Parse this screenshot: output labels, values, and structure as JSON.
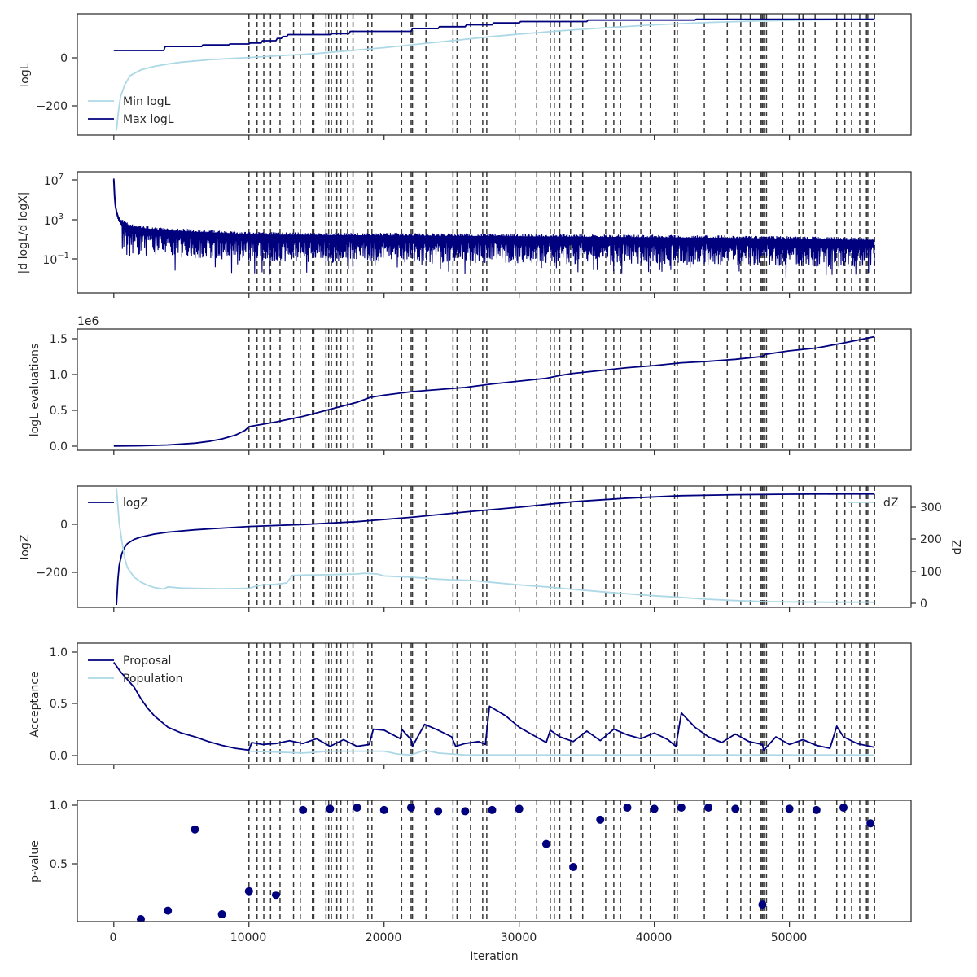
{
  "colors": {
    "dark": "#00007f",
    "light": "#add8e6",
    "vline": "#3a3a3a",
    "axis": "#262626"
  },
  "vlines": [
    10000,
    10600,
    11100,
    11600,
    12300,
    13300,
    13800,
    14700,
    14800,
    15700,
    15900,
    16100,
    16500,
    16800,
    17300,
    17700,
    18800,
    19100,
    21300,
    22000,
    22100,
    23100,
    25100,
    25400,
    26400,
    27300,
    27600,
    29700,
    31300,
    32300,
    32600,
    33000,
    33800,
    34700,
    36400,
    37000,
    37500,
    39000,
    39700,
    41500,
    41700,
    43700,
    45400,
    46400,
    47100,
    47900,
    48000,
    48100,
    48300,
    49500,
    50700,
    51000,
    51900,
    53500,
    54100,
    54600,
    55200,
    55700,
    55800,
    56300
  ],
  "xaxis": {
    "label": "Iteration",
    "ticks": [
      "0",
      "10000",
      "20000",
      "30000",
      "40000",
      "50000"
    ],
    "range": [
      -2700,
      59000
    ]
  },
  "chart_data": [
    {
      "type": "line",
      "ylabel": "logL",
      "yticks": [
        "0",
        "−200"
      ],
      "ylim": [
        -335,
        185
      ],
      "legend": {
        "position": "lower-left",
        "entries": [
          "Min logL",
          "Max logL"
        ]
      },
      "series": [
        {
          "name": "Min logL",
          "color": "#add8e6",
          "x": [
            200,
            350,
            500,
            800,
            1200,
            2000,
            3000,
            4000,
            5000,
            7000,
            10000,
            12000,
            15000,
            18000,
            20000,
            22000,
            25000,
            28000,
            30000,
            33000,
            36000,
            40000,
            44000,
            48000,
            52000,
            56300
          ],
          "y": [
            -315,
            -230,
            -170,
            -120,
            -80,
            -55,
            -40,
            -30,
            -22,
            -12,
            -2,
            5,
            15,
            30,
            40,
            52,
            70,
            88,
            98,
            112,
            124,
            138,
            148,
            155,
            159,
            162
          ]
        },
        {
          "name": "Max logL",
          "color": "#00007f",
          "x": [
            0,
            3700,
            3800,
            6500,
            6600,
            8500,
            8600,
            10000,
            10100,
            10900,
            11000,
            12000,
            12100,
            12400,
            12500,
            12800,
            12900,
            16000,
            16100,
            17400,
            17500,
            22000,
            22100,
            24000,
            24100,
            26000,
            26100,
            28000,
            28100,
            30000,
            30100,
            35000,
            35100,
            43000,
            43100,
            56300
          ],
          "y": [
            28,
            28,
            45,
            45,
            52,
            52,
            56,
            56,
            60,
            60,
            70,
            70,
            80,
            80,
            88,
            88,
            96,
            96,
            100,
            100,
            110,
            110,
            122,
            122,
            130,
            130,
            138,
            138,
            146,
            146,
            152,
            152,
            158,
            158,
            162,
            162
          ]
        }
      ]
    },
    {
      "type": "line",
      "ylabel": "|d logL/d logX|",
      "yticks": [
        {
          "label": "10",
          "exp": "7",
          "value": 7
        },
        {
          "label": "10",
          "exp": "3",
          "value": 3
        },
        {
          "label": "10",
          "exp": "−1",
          "value": -1
        }
      ],
      "ylim_log10": [
        -4.6,
        8.2
      ],
      "scale": "log",
      "series": [
        {
          "name": "",
          "color": "#00007f",
          "x": [
            0,
            60,
            120,
            200,
            300,
            450,
            650,
            900,
            1200,
            1700,
            2300,
            3000,
            4000,
            5000,
            6500,
            8000,
            9500,
            10000,
            15000,
            20000,
            25000,
            30000,
            35000,
            40000,
            45000,
            50000,
            54000,
            56300
          ],
          "y_log10": [
            7.4,
            5.6,
            4.6,
            4.0,
            3.5,
            3.1,
            2.8,
            2.6,
            2.4,
            2.25,
            2.15,
            2.05,
            1.95,
            1.85,
            1.75,
            1.65,
            1.55,
            1.5,
            1.45,
            1.4,
            1.35,
            1.3,
            1.25,
            1.2,
            1.15,
            1.05,
            0.95,
            0.9
          ],
          "band_low_log10": -2.8
        }
      ]
    },
    {
      "type": "line",
      "ylabel": "logL evaluations",
      "offset_label": "1e6",
      "yticks": [
        "1.5",
        "1.0",
        "0.5",
        "0.0"
      ],
      "ylim": [
        -0.06,
        1.66
      ],
      "series": [
        {
          "name": "",
          "color": "#00007f",
          "x": [
            0,
            2000,
            4000,
            6000,
            7000,
            8000,
            9000,
            9700,
            10000,
            12000,
            14000,
            16000,
            18000,
            19000,
            20000,
            22000,
            24000,
            26000,
            28000,
            30000,
            32000,
            33000,
            34000,
            36000,
            38000,
            40000,
            42000,
            44000,
            46000,
            48000,
            48200,
            50000,
            52000,
            54000,
            56300
          ],
          "y": [
            0.0,
            0.004,
            0.015,
            0.04,
            0.065,
            0.1,
            0.155,
            0.22,
            0.275,
            0.34,
            0.42,
            0.52,
            0.62,
            0.69,
            0.72,
            0.77,
            0.8,
            0.83,
            0.88,
            0.92,
            0.96,
            1.0,
            1.03,
            1.07,
            1.11,
            1.14,
            1.18,
            1.2,
            1.23,
            1.27,
            1.3,
            1.35,
            1.39,
            1.46,
            1.55
          ]
        }
      ]
    },
    {
      "type": "line",
      "ylabel": "logZ",
      "yticks": [
        "0",
        "−200"
      ],
      "ylim": [
        -335,
        170
      ],
      "y2label": "dZ",
      "y2ticks": [
        "300",
        "200",
        "100",
        "0"
      ],
      "y2lim": [
        -14,
        364
      ],
      "legend": {
        "left": "logZ",
        "right": "dZ"
      },
      "series": [
        {
          "name": "logZ",
          "color": "#00007f",
          "x": [
            200,
            300,
            400,
            600,
            800,
            1000,
            1500,
            2000,
            3000,
            4000,
            6000,
            8000,
            10000,
            14000,
            18000,
            22000,
            26000,
            30000,
            34000,
            38000,
            42000,
            46000,
            50000,
            54000,
            56300
          ],
          "y": [
            -325,
            -220,
            -160,
            -110,
            -85,
            -70,
            -52,
            -42,
            -30,
            -22,
            -12,
            -5,
            2,
            10,
            22,
            40,
            62,
            82,
            105,
            120,
            130,
            134,
            136,
            137,
            137
          ]
        },
        {
          "name": "dZ",
          "color": "#add8e6",
          "axis": "right",
          "x": [
            200,
            400,
            600,
            800,
            1000,
            1500,
            2000,
            2500,
            3000,
            3700,
            4000,
            5000,
            6000,
            8000,
            10000,
            10500,
            11000,
            12000,
            12800,
            13200,
            16000,
            18000,
            18500,
            19500,
            20000,
            21000,
            22000,
            23000,
            24000,
            25000,
            26500,
            28000,
            30000,
            32000,
            34000,
            36000,
            38000,
            40000,
            42000,
            44000,
            46000,
            48000,
            50000,
            53000,
            56300
          ],
          "y": [
            355,
            250,
            190,
            140,
            110,
            80,
            65,
            55,
            48,
            43,
            50,
            46,
            45,
            44,
            45,
            52,
            56,
            58,
            62,
            86,
            88,
            90,
            92,
            90,
            84,
            82,
            80,
            77,
            74,
            72,
            70,
            64,
            56,
            50,
            42,
            35,
            28,
            22,
            17,
            11,
            7,
            4,
            3,
            2,
            2
          ]
        }
      ]
    },
    {
      "type": "line",
      "ylabel": "Acceptance",
      "yticks": [
        "1.0",
        "0.5",
        "0.0"
      ],
      "ylim": [
        -0.09,
        1.18
      ],
      "legend": {
        "position": "upper-left",
        "entries": [
          "Proposal",
          "Population"
        ]
      },
      "series": [
        {
          "name": "Proposal",
          "color": "#00007f",
          "x": [
            0,
            500,
            1000,
            1500,
            2000,
            2500,
            3000,
            3500,
            4000,
            5000,
            6000,
            7000,
            8000,
            9000,
            10000,
            10200,
            11000,
            12000,
            13000,
            14000,
            15000,
            16000,
            17000,
            18000,
            18900,
            19200,
            20000,
            21200,
            21300,
            22000,
            22100,
            23000,
            24000,
            25000,
            25300,
            26000,
            27000,
            27500,
            27800,
            29000,
            30000,
            31000,
            32000,
            32300,
            33000,
            34000,
            35000,
            36000,
            37000,
            38000,
            39000,
            40000,
            41000,
            41600,
            42000,
            43000,
            44000,
            45000,
            46000,
            47000,
            48000,
            48100,
            49000,
            50000,
            51000,
            52000,
            53000,
            53500,
            54000,
            55000,
            56300
          ],
          "y": [
            0.98,
            0.88,
            0.8,
            0.72,
            0.6,
            0.5,
            0.42,
            0.36,
            0.3,
            0.24,
            0.2,
            0.15,
            0.11,
            0.08,
            0.06,
            0.14,
            0.12,
            0.13,
            0.16,
            0.13,
            0.18,
            0.1,
            0.17,
            0.1,
            0.12,
            0.28,
            0.27,
            0.18,
            0.28,
            0.17,
            0.1,
            0.33,
            0.27,
            0.2,
            0.1,
            0.13,
            0.15,
            0.12,
            0.52,
            0.42,
            0.3,
            0.22,
            0.14,
            0.27,
            0.2,
            0.15,
            0.26,
            0.16,
            0.28,
            0.22,
            0.18,
            0.24,
            0.17,
            0.1,
            0.45,
            0.3,
            0.2,
            0.14,
            0.23,
            0.15,
            0.12,
            0.06,
            0.2,
            0.12,
            0.17,
            0.11,
            0.08,
            0.31,
            0.2,
            0.13,
            0.09
          ]
        },
        {
          "name": "Population",
          "color": "#add8e6",
          "x": [
            10000,
            12000,
            14000,
            16000,
            18000,
            20000,
            21000,
            22000,
            23000,
            24000,
            26000,
            28000,
            30000,
            34000,
            38000,
            42000,
            46000,
            50000,
            54000,
            56300
          ],
          "y": [
            0.05,
            0.04,
            0.03,
            0.05,
            0.05,
            0.05,
            0.02,
            0.01,
            0.06,
            0.03,
            0.01,
            0.01,
            0.01,
            0.01,
            0.01,
            0.01,
            0.01,
            0.01,
            0.01,
            0.01
          ]
        }
      ]
    },
    {
      "type": "scatter",
      "ylabel": "p-value",
      "yticks": [
        "1.0",
        "0.5"
      ],
      "ylim": [
        0.05,
        1.05
      ],
      "series": [
        {
          "name": "",
          "color": "#00007f",
          "x": [
            2000,
            4000,
            6000,
            8000,
            10000,
            12000,
            14000,
            16000,
            18000,
            20000,
            22000,
            24000,
            26000,
            28000,
            30000,
            32000,
            34000,
            36000,
            38000,
            40000,
            42000,
            44000,
            46000,
            48000,
            50000,
            52000,
            54000,
            56000
          ],
          "y": [
            0.07,
            0.14,
            0.81,
            0.11,
            0.3,
            0.27,
            0.97,
            0.98,
            0.99,
            0.97,
            0.99,
            0.96,
            0.96,
            0.97,
            0.98,
            0.69,
            0.5,
            0.89,
            0.99,
            0.98,
            0.99,
            0.99,
            0.98,
            0.19,
            0.98,
            0.97,
            0.99,
            0.86
          ]
        }
      ]
    }
  ]
}
